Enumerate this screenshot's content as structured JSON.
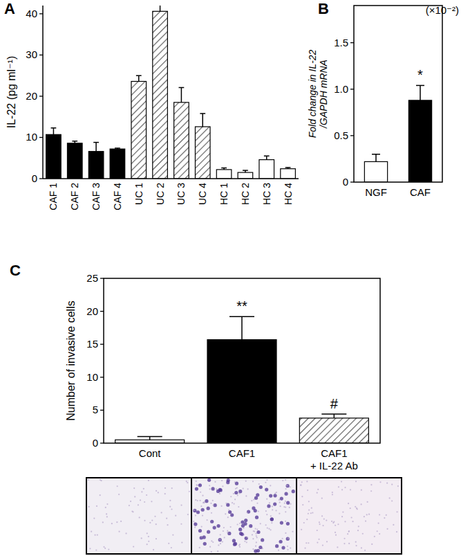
{
  "chart_data": [
    {
      "type": "bar",
      "title": "A",
      "ylabel": "IL-22 (pg ml⁻¹)",
      "categories": [
        "CAF 1",
        "CAF 2",
        "CAF 3",
        "CAF 4",
        "UC 1",
        "UC 2",
        "UC 3",
        "UC 4",
        "HC 1",
        "HC 2",
        "HC 3",
        "HC 4"
      ],
      "values": [
        10.7,
        8.6,
        6.6,
        7.2,
        23.6,
        40.6,
        18.5,
        12.6,
        2.2,
        1.5,
        4.6,
        2.4
      ],
      "errors": [
        1.6,
        0.5,
        2.2,
        0.2,
        1.4,
        3.0,
        3.6,
        3.2,
        0.4,
        0.5,
        0.9,
        0.3
      ],
      "colors": [
        "#000000",
        "#000000",
        "#000000",
        "#000000",
        "#606060",
        "#606060",
        "#606060",
        "#606060",
        "#ffffff",
        "#ffffff",
        "#ffffff",
        "#ffffff"
      ],
      "ylim": [
        0,
        42
      ],
      "yticks": [
        0,
        10,
        20,
        30,
        40
      ]
    },
    {
      "type": "bar",
      "title": "B",
      "ylabel": "Fold change in IL-22 /GAPDH mRNA",
      "subtitle": "(×10⁻²)",
      "categories": [
        "NGF",
        "CAF"
      ],
      "values": [
        0.22,
        0.88
      ],
      "errors": [
        0.08,
        0.16
      ],
      "colors": [
        "#ffffff",
        "#000000"
      ],
      "annotations": [
        {
          "text": "*",
          "category": "CAF"
        }
      ],
      "ylim": [
        0,
        1.9
      ],
      "yticks": [
        0,
        0.5,
        {
          "value": 1,
          "label": "1.0"
        },
        1.5
      ]
    },
    {
      "type": "bar",
      "title": "C",
      "ylabel": "Number of invasive cells",
      "categories": [
        "Cont",
        "CAF1",
        "CAF1 + IL-22 Ab"
      ],
      "values": [
        0.5,
        15.7,
        3.8
      ],
      "errors": [
        0.5,
        3.5,
        0.6
      ],
      "colors": [
        "#ffffff",
        "#000000",
        "#606060"
      ],
      "annotations": [
        {
          "text": "**",
          "category": "CAF1"
        },
        {
          "text": "#",
          "category": "CAF1 + IL-22 Ab"
        }
      ],
      "ylim": [
        0,
        25
      ],
      "yticks": [
        0,
        5,
        10,
        15,
        20,
        25
      ]
    }
  ]
}
